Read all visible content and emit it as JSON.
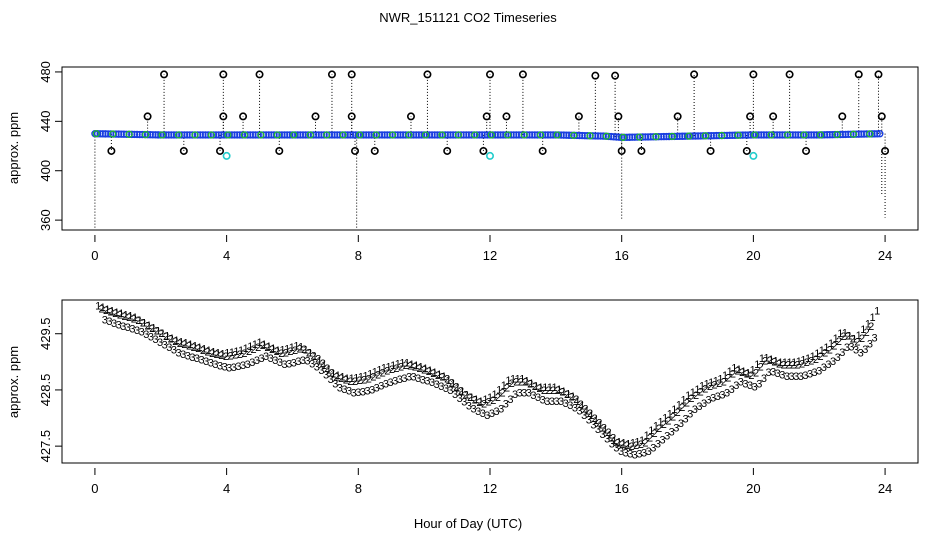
{
  "chart_data": [
    {
      "type": "scatter",
      "title": "NWR_151121  CO2 Timeseries",
      "ylabel": "approx. ppm",
      "xlim": [
        -1,
        25
      ],
      "ylim": [
        352,
        484
      ],
      "xticks": [
        0,
        4,
        8,
        12,
        16,
        20,
        24
      ],
      "yticks": [
        360,
        400,
        440,
        480
      ],
      "colors": {
        "baseline": "#1a3fe0",
        "secondary": "#22c022",
        "spike": "#000000",
        "low": "#22cccc",
        "whisker": "#000000"
      },
      "baseline": {
        "x": [
          0.0,
          2.0,
          4.0,
          6.0,
          8.0,
          10.0,
          12.0,
          14.0,
          15.5,
          16.0,
          18.0,
          20.0,
          22.0,
          23.9
        ],
        "y": [
          430,
          429,
          429,
          429,
          429,
          429,
          429,
          429,
          428,
          427,
          428,
          429,
          429,
          430
        ]
      },
      "spikes": [
        {
          "x": 0.5,
          "y": 416
        },
        {
          "x": 1.6,
          "y": 444
        },
        {
          "x": 2.1,
          "y": 478
        },
        {
          "x": 2.7,
          "y": 416
        },
        {
          "x": 3.8,
          "y": 416
        },
        {
          "x": 3.9,
          "y": 444
        },
        {
          "x": 3.9,
          "y": 478
        },
        {
          "x": 4.5,
          "y": 444
        },
        {
          "x": 5.0,
          "y": 478
        },
        {
          "x": 5.6,
          "y": 416
        },
        {
          "x": 6.7,
          "y": 444
        },
        {
          "x": 7.2,
          "y": 478
        },
        {
          "x": 7.8,
          "y": 478
        },
        {
          "x": 7.8,
          "y": 444
        },
        {
          "x": 7.9,
          "y": 416
        },
        {
          "x": 8.5,
          "y": 416
        },
        {
          "x": 9.6,
          "y": 444
        },
        {
          "x": 10.1,
          "y": 478
        },
        {
          "x": 10.7,
          "y": 416
        },
        {
          "x": 11.8,
          "y": 416
        },
        {
          "x": 11.9,
          "y": 444
        },
        {
          "x": 12.0,
          "y": 478
        },
        {
          "x": 12.5,
          "y": 444
        },
        {
          "x": 13.0,
          "y": 478
        },
        {
          "x": 13.6,
          "y": 416
        },
        {
          "x": 14.7,
          "y": 444
        },
        {
          "x": 15.2,
          "y": 477
        },
        {
          "x": 15.8,
          "y": 477
        },
        {
          "x": 15.9,
          "y": 444
        },
        {
          "x": 16.0,
          "y": 416
        },
        {
          "x": 16.6,
          "y": 416
        },
        {
          "x": 17.7,
          "y": 444
        },
        {
          "x": 18.2,
          "y": 478
        },
        {
          "x": 18.7,
          "y": 416
        },
        {
          "x": 19.8,
          "y": 416
        },
        {
          "x": 19.9,
          "y": 444
        },
        {
          "x": 20.0,
          "y": 478
        },
        {
          "x": 20.6,
          "y": 444
        },
        {
          "x": 21.1,
          "y": 478
        },
        {
          "x": 21.6,
          "y": 416
        },
        {
          "x": 22.7,
          "y": 444
        },
        {
          "x": 23.2,
          "y": 478
        },
        {
          "x": 23.8,
          "y": 478
        },
        {
          "x": 23.9,
          "y": 444
        },
        {
          "x": 24.0,
          "y": 416
        }
      ],
      "low_points": [
        {
          "x": 4.0,
          "y": 412
        },
        {
          "x": 12.0,
          "y": 412
        },
        {
          "x": 20.0,
          "y": 412
        }
      ],
      "whiskers": [
        {
          "x": 0.0,
          "y0": 430,
          "y1": 352
        },
        {
          "x": 7.95,
          "y0": 430,
          "y1": 352
        },
        {
          "x": 16.0,
          "y0": 430,
          "y1": 360
        },
        {
          "x": 24.0,
          "y0": 416,
          "y1": 362
        },
        {
          "x": 23.9,
          "y0": 416,
          "y1": 380
        }
      ]
    },
    {
      "type": "line",
      "ylabel": "approx. ppm",
      "xlabel": "Hour of Day (UTC)",
      "xlim": [
        -1,
        25
      ],
      "ylim": [
        427.2,
        430.1
      ],
      "xticks": [
        0,
        4,
        8,
        12,
        16,
        20,
        24
      ],
      "yticks": [
        427.5,
        428.5,
        429.5
      ],
      "series": [
        {
          "name": "1",
          "color": "#d01010",
          "x": [
            0.1,
            0.6,
            1.2,
            1.8,
            2.4,
            3.0,
            3.5,
            3.9,
            4.4,
            5.0,
            5.6,
            6.2,
            6.7,
            7.2,
            7.7,
            8.2,
            8.8,
            9.4,
            10.0,
            10.6,
            11.2,
            11.7,
            12.1,
            12.6,
            13.0,
            13.5,
            14.0,
            14.5,
            15.0,
            15.5,
            15.8,
            16.2,
            16.6,
            17.0,
            17.5,
            18.0,
            18.5,
            19.0,
            19.4,
            19.9,
            20.3,
            20.8,
            21.3,
            21.8,
            22.3,
            22.7,
            23.1,
            23.5,
            23.8
          ],
          "y": [
            430.0,
            429.9,
            429.8,
            429.6,
            429.4,
            429.3,
            429.2,
            429.15,
            429.2,
            429.35,
            429.2,
            429.3,
            429.1,
            428.8,
            428.7,
            428.75,
            428.9,
            429.0,
            428.9,
            428.75,
            428.45,
            428.3,
            428.4,
            428.7,
            428.7,
            428.55,
            428.55,
            428.4,
            428.1,
            427.8,
            427.6,
            427.55,
            427.6,
            427.85,
            428.1,
            428.4,
            428.6,
            428.7,
            428.9,
            428.8,
            429.1,
            429.0,
            429.0,
            429.1,
            429.3,
            429.55,
            429.4,
            429.7,
            429.95
          ]
        },
        {
          "name": "2",
          "color": "#20b020",
          "x": [
            0.2,
            0.7,
            1.3,
            1.9,
            2.5,
            3.1,
            3.6,
            4.0,
            4.5,
            5.1,
            5.7,
            6.3,
            6.8,
            7.3,
            7.8,
            8.3,
            8.9,
            9.5,
            10.1,
            10.7,
            11.3,
            11.8,
            12.2,
            12.7,
            13.1,
            13.6,
            14.1,
            14.6,
            15.1,
            15.6,
            15.9,
            16.3,
            16.7,
            17.1,
            17.6,
            18.1,
            18.6,
            19.1,
            19.5,
            20.0,
            20.4,
            20.9,
            21.4,
            21.9,
            22.4,
            22.8,
            23.2,
            23.6
          ],
          "y": [
            429.95,
            429.85,
            429.75,
            429.55,
            429.35,
            429.25,
            429.15,
            429.1,
            429.15,
            429.3,
            429.15,
            429.25,
            429.05,
            428.75,
            428.65,
            428.7,
            428.85,
            428.95,
            428.85,
            428.7,
            428.4,
            428.25,
            428.35,
            428.65,
            428.65,
            428.5,
            428.5,
            428.35,
            428.05,
            427.75,
            427.55,
            427.5,
            427.55,
            427.8,
            428.05,
            428.35,
            428.55,
            428.65,
            428.85,
            428.75,
            429.05,
            428.95,
            428.95,
            429.05,
            429.25,
            429.5,
            429.35,
            429.65
          ]
        },
        {
          "name": "3",
          "color": "#1030c0",
          "x": [
            0.3,
            0.8,
            1.4,
            2.0,
            2.6,
            3.2,
            3.7,
            4.1,
            4.6,
            5.2,
            5.8,
            6.4,
            6.9,
            7.4,
            7.9,
            8.4,
            9.0,
            9.6,
            10.2,
            10.8,
            11.4,
            11.9,
            12.3,
            12.8,
            13.2,
            13.7,
            14.2,
            14.7,
            15.2,
            15.7,
            16.0,
            16.4,
            16.8,
            17.2,
            17.7,
            18.2,
            18.7,
            19.2,
            19.6,
            20.1,
            20.5,
            21.0,
            21.5,
            22.0,
            22.5,
            22.9,
            23.3,
            23.7
          ],
          "y": [
            429.75,
            429.65,
            429.55,
            429.35,
            429.15,
            429.05,
            428.95,
            428.9,
            428.95,
            429.1,
            428.95,
            429.05,
            428.85,
            428.55,
            428.45,
            428.5,
            428.65,
            428.75,
            428.65,
            428.5,
            428.2,
            428.05,
            428.15,
            428.45,
            428.45,
            428.3,
            428.3,
            428.15,
            427.85,
            427.55,
            427.4,
            427.35,
            427.4,
            427.6,
            427.85,
            428.15,
            428.35,
            428.45,
            428.65,
            428.55,
            428.85,
            428.75,
            428.75,
            428.85,
            429.05,
            429.3,
            429.15,
            429.45
          ]
        }
      ]
    }
  ]
}
